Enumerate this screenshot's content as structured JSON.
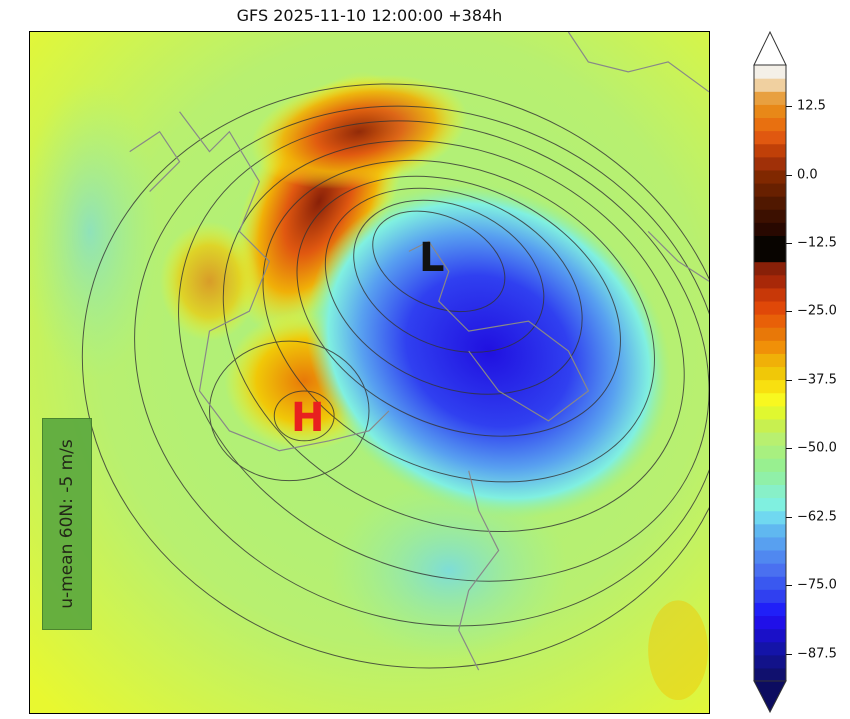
{
  "title": "GFS 2025-11-10 12:00:00 +384h",
  "markers": {
    "high": "H",
    "low": "L",
    "high_color": "#e8201f",
    "low_color": "#111111"
  },
  "annotation": {
    "text": "u-mean 60N: -5 m/s",
    "background": "#5aa83e"
  },
  "colorbar": {
    "min": -92.5,
    "max": 20,
    "step": 2.5,
    "extend": "both",
    "ticks": [
      "12.5",
      "0.0",
      "−12.5",
      "−25.0",
      "−37.5",
      "−50.0",
      "−62.5",
      "−75.0",
      "−87.5"
    ],
    "tick_values": [
      12.5,
      0,
      -12.5,
      -25,
      -37.5,
      -50,
      -62.5,
      -75,
      -87.5
    ],
    "colors_bottom_to_top": [
      "#10106e",
      "#12128a",
      "#1414a8",
      "#1a10c8",
      "#2010e8",
      "#2020f8",
      "#3040f0",
      "#3a58f0",
      "#4a70f0",
      "#5088f0",
      "#58a0f0",
      "#60b8f0",
      "#70d8f0",
      "#80f0e0",
      "#88f0c8",
      "#90f0a8",
      "#98f090",
      "#a8f080",
      "#b8f070",
      "#c8f050",
      "#e0f830",
      "#f8f820",
      "#f8e010",
      "#f0c808",
      "#f0b008",
      "#f09008",
      "#e87808",
      "#e86008",
      "#e04808",
      "#c83808",
      "#a82808",
      "#882008",
      "#080400",
      "#080400",
      "#280800",
      "#3c1000",
      "#501800",
      "#682000",
      "#802800",
      "#a03008",
      "#c04008",
      "#e05810",
      "#e87010",
      "#e88818",
      "#e8a040",
      "#f0d0a0",
      "#f4f0e8"
    ],
    "extend_low_color": "#0c0c60",
    "extend_high_color": "#ffffff"
  }
}
